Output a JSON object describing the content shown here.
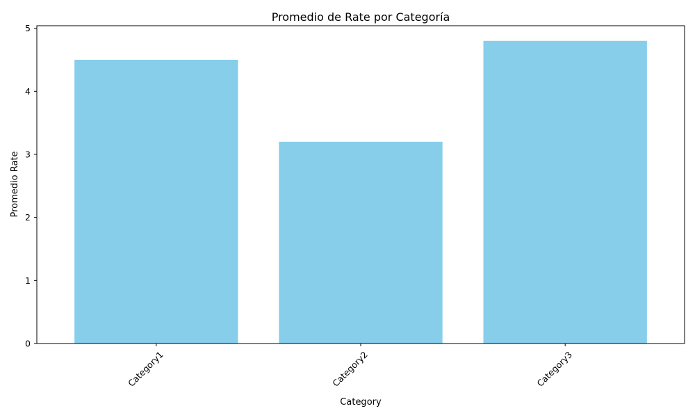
{
  "chart_data": {
    "type": "bar",
    "title": "Promedio de Rate por Categoría",
    "xlabel": "Category",
    "ylabel": "Promedio Rate",
    "categories": [
      "Category1",
      "Category2",
      "Category3"
    ],
    "values": [
      4.5,
      3.2,
      4.8
    ],
    "ylim": [
      0,
      5.04
    ],
    "yticks": [
      0,
      1,
      2,
      3,
      4,
      5
    ],
    "bar_color": "#87ceeb",
    "grid": false,
    "xtick_rotation_deg": 45
  }
}
